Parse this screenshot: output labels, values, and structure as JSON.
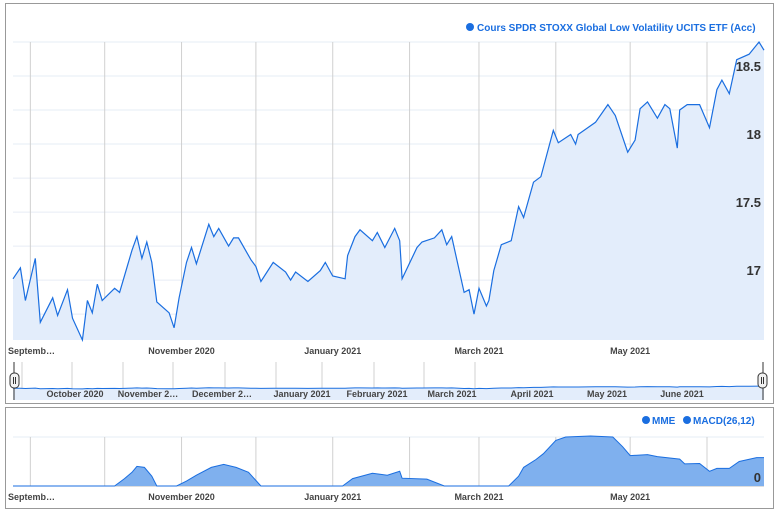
{
  "colors": {
    "line": "#1a6ee0",
    "area": "#e3edfb",
    "macd_area": "#7fb0ee",
    "grid": "#d0d0d0",
    "hgrid": "#e6ecf5"
  },
  "chart_data": [
    {
      "type": "area",
      "legend": "Cours SPDR STOXX Global Low Volatility UCITS ETF (Acc)",
      "legend_placement": "top-right",
      "xlim": [
        "2020-08-25",
        "2021-06-24"
      ],
      "ylim": [
        16.56,
        18.75
      ],
      "yticks": [
        17,
        17.5,
        18,
        18.5
      ],
      "ytick_labels": [
        "17",
        "17.5",
        "18",
        "18.5"
      ],
      "xtick_labels": [
        "Septemb…",
        "November 2020",
        "January 2021",
        "March 2021",
        "May 2021"
      ],
      "grid": true,
      "points": [
        [
          "2020-08-25",
          17.01
        ],
        [
          "2020-08-28",
          17.09
        ],
        [
          "2020-08-30",
          16.85
        ],
        [
          "2020-09-03",
          17.16
        ],
        [
          "2020-09-05",
          16.69
        ],
        [
          "2020-09-10",
          16.87
        ],
        [
          "2020-09-12",
          16.74
        ],
        [
          "2020-09-16",
          16.93
        ],
        [
          "2020-09-18",
          16.72
        ],
        [
          "2020-09-22",
          16.56
        ],
        [
          "2020-09-24",
          16.85
        ],
        [
          "2020-09-26",
          16.76
        ],
        [
          "2020-09-28",
          16.97
        ],
        [
          "2020-09-30",
          16.85
        ],
        [
          "2020-10-05",
          16.94
        ],
        [
          "2020-10-07",
          16.91
        ],
        [
          "2020-10-12",
          17.22
        ],
        [
          "2020-10-14",
          17.32
        ],
        [
          "2020-10-16",
          17.16
        ],
        [
          "2020-10-18",
          17.28
        ],
        [
          "2020-10-20",
          17.13
        ],
        [
          "2020-10-22",
          16.84
        ],
        [
          "2020-10-27",
          16.76
        ],
        [
          "2020-10-29",
          16.65
        ],
        [
          "2020-10-31",
          16.87
        ],
        [
          "2020-11-03",
          17.13
        ],
        [
          "2020-11-05",
          17.24
        ],
        [
          "2020-11-07",
          17.12
        ],
        [
          "2020-11-12",
          17.41
        ],
        [
          "2020-11-14",
          17.32
        ],
        [
          "2020-11-16",
          17.38
        ],
        [
          "2020-11-20",
          17.25
        ],
        [
          "2020-11-22",
          17.31
        ],
        [
          "2020-11-24",
          17.31
        ],
        [
          "2020-11-29",
          17.15
        ],
        [
          "2020-12-01",
          17.1
        ],
        [
          "2020-12-03",
          16.99
        ],
        [
          "2020-12-08",
          17.13
        ],
        [
          "2020-12-13",
          17.06
        ],
        [
          "2020-12-15",
          17.0
        ],
        [
          "2020-12-17",
          17.06
        ],
        [
          "2020-12-22",
          16.99
        ],
        [
          "2020-12-27",
          17.07
        ],
        [
          "2020-12-29",
          17.13
        ],
        [
          "2021-01-01",
          17.03
        ],
        [
          "2021-01-06",
          17.01
        ],
        [
          "2021-01-07",
          17.18
        ],
        [
          "2021-01-10",
          17.32
        ],
        [
          "2021-01-12",
          17.37
        ],
        [
          "2021-01-17",
          17.29
        ],
        [
          "2021-01-19",
          17.35
        ],
        [
          "2021-01-22",
          17.24
        ],
        [
          "2021-01-26",
          17.38
        ],
        [
          "2021-01-28",
          17.29
        ],
        [
          "2021-01-29",
          17.01
        ],
        [
          "2021-02-04",
          17.24
        ],
        [
          "2021-02-06",
          17.28
        ],
        [
          "2021-02-11",
          17.31
        ],
        [
          "2021-02-14",
          17.37
        ],
        [
          "2021-02-16",
          17.26
        ],
        [
          "2021-02-18",
          17.32
        ],
        [
          "2021-02-23",
          16.91
        ],
        [
          "2021-02-25",
          16.93
        ],
        [
          "2021-02-27",
          16.75
        ],
        [
          "2021-03-01",
          16.94
        ],
        [
          "2021-03-04",
          16.81
        ],
        [
          "2021-03-05",
          16.85
        ],
        [
          "2021-03-07",
          17.07
        ],
        [
          "2021-03-10",
          17.26
        ],
        [
          "2021-03-14",
          17.29
        ],
        [
          "2021-03-17",
          17.54
        ],
        [
          "2021-03-19",
          17.46
        ],
        [
          "2021-03-23",
          17.72
        ],
        [
          "2021-03-26",
          17.76
        ],
        [
          "2021-03-31",
          18.1
        ],
        [
          "2021-04-02",
          18.01
        ],
        [
          "2021-04-07",
          18.07
        ],
        [
          "2021-04-09",
          18.0
        ],
        [
          "2021-04-10",
          18.07
        ],
        [
          "2021-04-17",
          18.16
        ],
        [
          "2021-04-22",
          18.29
        ],
        [
          "2021-04-25",
          18.21
        ],
        [
          "2021-04-30",
          17.94
        ],
        [
          "2021-05-03",
          18.03
        ],
        [
          "2021-05-05",
          18.26
        ],
        [
          "2021-05-08",
          18.31
        ],
        [
          "2021-05-12",
          18.19
        ],
        [
          "2021-05-15",
          18.29
        ],
        [
          "2021-05-17",
          18.26
        ],
        [
          "2021-05-20",
          17.97
        ],
        [
          "2021-05-21",
          18.25
        ],
        [
          "2021-05-24",
          18.29
        ],
        [
          "2021-05-29",
          18.29
        ],
        [
          "2021-06-02",
          18.12
        ],
        [
          "2021-06-05",
          18.4
        ],
        [
          "2021-06-07",
          18.47
        ],
        [
          "2021-06-10",
          18.37
        ],
        [
          "2021-06-13",
          18.62
        ],
        [
          "2021-06-18",
          18.66
        ],
        [
          "2021-06-22",
          18.75
        ],
        [
          "2021-06-24",
          18.69
        ]
      ]
    },
    {
      "type": "area",
      "legend": [
        "MME",
        "MACD(26,12)"
      ],
      "legend_placement": "top-right",
      "xlim": [
        "2020-08-25",
        "2021-06-24"
      ],
      "ylim": [
        0,
        0.05
      ],
      "yticks": [
        0
      ],
      "ytick_labels": [
        "0"
      ],
      "xtick_labels": [
        "Septemb…",
        "November 2020",
        "January 2021",
        "March 2021",
        "May 2021"
      ],
      "points": [
        [
          "2020-08-25",
          0
        ],
        [
          "2020-09-20",
          0
        ],
        [
          "2020-10-05",
          0
        ],
        [
          "2020-10-09",
          0.0075
        ],
        [
          "2020-10-12",
          0.014
        ],
        [
          "2020-10-14",
          0.02
        ],
        [
          "2020-10-17",
          0.019
        ],
        [
          "2020-10-20",
          0.01
        ],
        [
          "2020-10-22",
          0
        ],
        [
          "2020-10-30",
          0
        ],
        [
          "2020-11-03",
          0.005
        ],
        [
          "2020-11-07",
          0.011
        ],
        [
          "2020-11-13",
          0.019
        ],
        [
          "2020-11-18",
          0.022
        ],
        [
          "2020-11-23",
          0.019
        ],
        [
          "2020-11-28",
          0.014
        ],
        [
          "2020-12-03",
          0
        ],
        [
          "2021-01-05",
          0
        ],
        [
          "2021-01-09",
          0.0075
        ],
        [
          "2021-01-17",
          0.013
        ],
        [
          "2021-01-23",
          0.011
        ],
        [
          "2021-01-28",
          0.015
        ],
        [
          "2021-01-29",
          0.008
        ],
        [
          "2021-02-08",
          0.007
        ],
        [
          "2021-02-15",
          0
        ],
        [
          "2021-03-13",
          0
        ],
        [
          "2021-03-17",
          0.01
        ],
        [
          "2021-03-19",
          0.019
        ],
        [
          "2021-03-24",
          0.027
        ],
        [
          "2021-03-27",
          0.033
        ],
        [
          "2021-04-01",
          0.0465
        ],
        [
          "2021-04-05",
          0.05
        ],
        [
          "2021-04-15",
          0.051
        ],
        [
          "2021-04-24",
          0.05
        ],
        [
          "2021-04-28",
          0.04
        ],
        [
          "2021-05-01",
          0.031
        ],
        [
          "2021-05-08",
          0.032
        ],
        [
          "2021-05-12",
          0.03
        ],
        [
          "2021-05-21",
          0.0275
        ],
        [
          "2021-05-23",
          0.0225
        ],
        [
          "2021-05-29",
          0.023
        ],
        [
          "2021-06-02",
          0.015
        ],
        [
          "2021-06-05",
          0.018
        ],
        [
          "2021-06-10",
          0.018
        ],
        [
          "2021-06-14",
          0.025
        ],
        [
          "2021-06-21",
          0.029
        ],
        [
          "2021-06-24",
          0.029
        ]
      ]
    }
  ],
  "navigator": {
    "labels": [
      "October 2020",
      "November 2…",
      "December 2…",
      "January 2021",
      "February 2021",
      "March 2021",
      "April 2021",
      "May 2021",
      "June 2021"
    ]
  }
}
